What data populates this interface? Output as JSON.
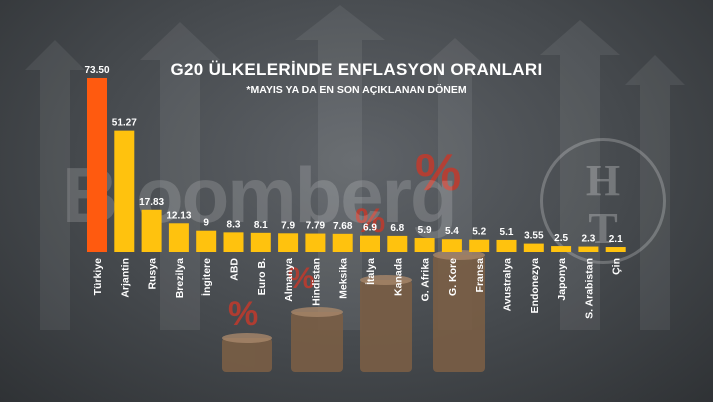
{
  "header": {
    "title": "G20 ÜLKELERİNDE ENFLASYON ORANLARI",
    "subtitle": "*MAYIS YA DA EN SON AÇIKLANAN DÖNEM"
  },
  "watermark": {
    "text": "Bloomberg"
  },
  "logo": {
    "top": "H",
    "bottom": "T"
  },
  "colors": {
    "highlight": "#ff5a0f",
    "bar": "#ffc20e",
    "text": "#ffffff"
  },
  "chart_data": {
    "type": "bar",
    "title": "G20 ÜLKELERİNDE ENFLASYON ORANLARI",
    "subtitle": "*MAYIS YA DA EN SON AÇIKLANAN DÖNEM",
    "categories": [
      "Türkiye",
      "Arjantin",
      "Rusya",
      "Brezilya",
      "İngitere",
      "ABD",
      "Euro B.",
      "Almanya",
      "Hindistan",
      "Meksika",
      "İtalya",
      "Kanada",
      "G. Afrika",
      "G. Kore",
      "Fransa",
      "Avustralya",
      "Endonezya",
      "Japonya",
      "S. Arabistan",
      "Çin"
    ],
    "values": [
      73.5,
      51.27,
      17.83,
      12.13,
      9,
      8.3,
      8.1,
      7.9,
      7.79,
      7.68,
      6.9,
      6.8,
      5.9,
      5.4,
      5.2,
      5.1,
      3.55,
      2.5,
      2.3,
      2.1
    ],
    "value_labels": [
      "73.50",
      "51.27",
      "17.83",
      "12.13",
      "9",
      "8.3",
      "8.1",
      "7.9",
      "7.79",
      "7.68",
      "6.9",
      "6.8",
      "5.9",
      "5.4",
      "5.2",
      "5.1",
      "3.55",
      "2.5",
      "2.3",
      "2.1"
    ],
    "highlight_index": 0,
    "ylim": [
      0,
      73.5
    ],
    "grid": false,
    "legend": "none"
  }
}
